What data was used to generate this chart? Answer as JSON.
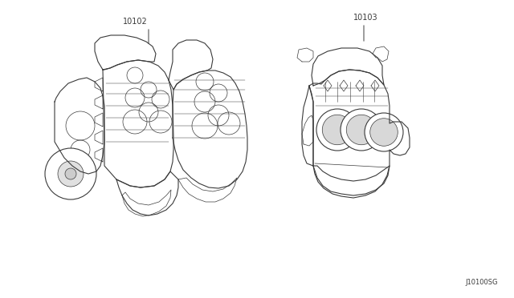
{
  "background_color": "#ffffff",
  "figure_bg": "#ffffff",
  "label_1": "10102",
  "label_2": "10103",
  "diagram_code": "J10100SG",
  "line_color": "#3a3a3a",
  "text_color": "#3a3a3a",
  "font_size_label": 7,
  "font_size_code": 6
}
